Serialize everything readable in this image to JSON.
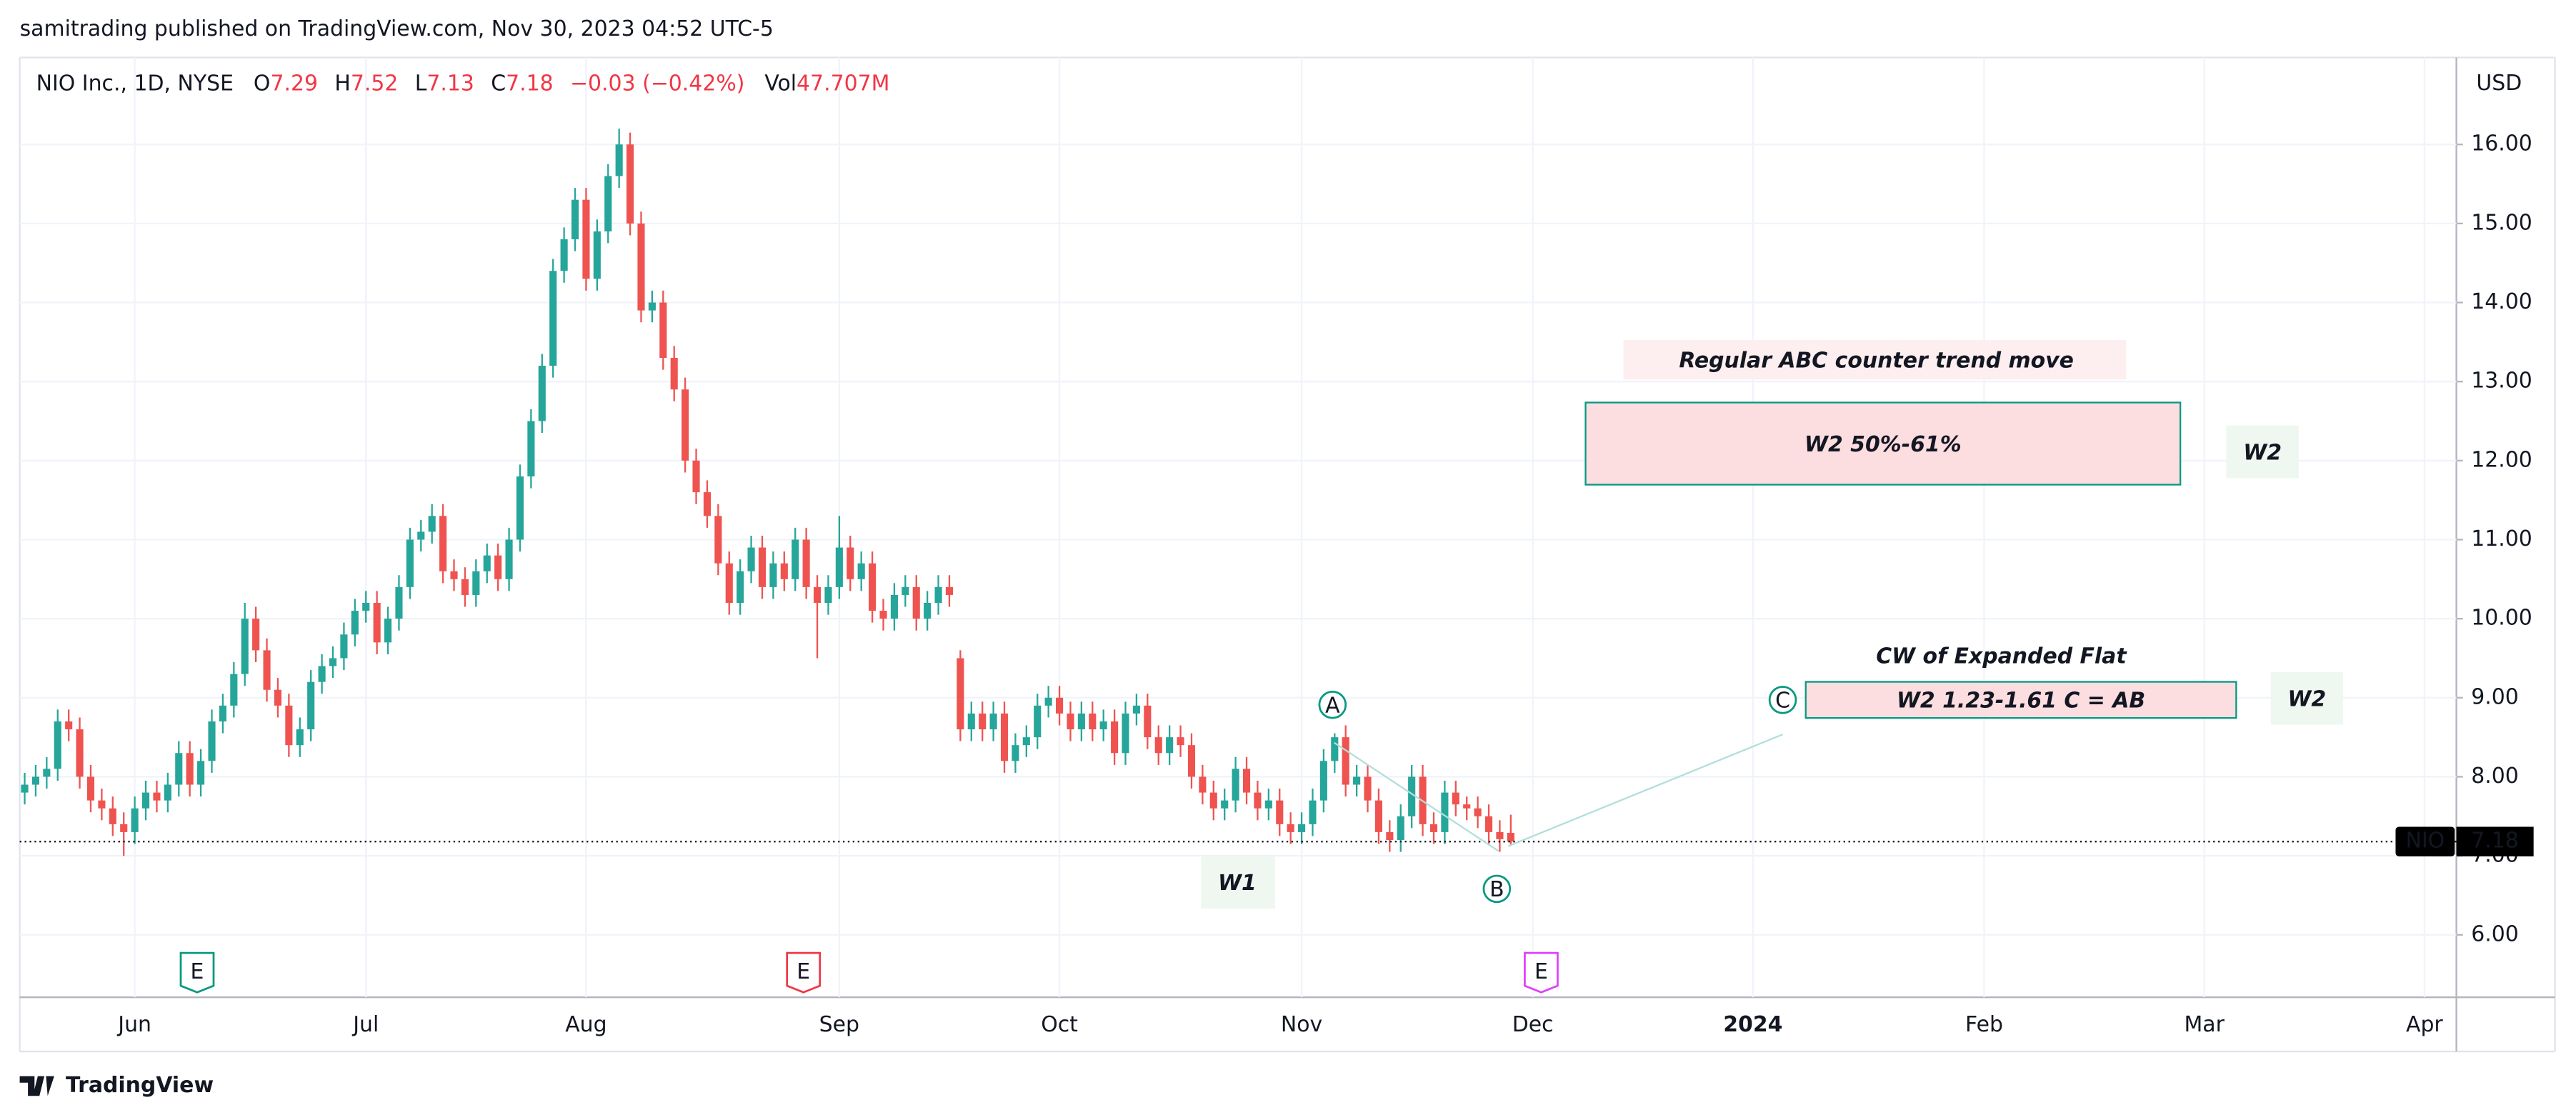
{
  "header": {
    "publisher": "samitrading published on TradingView.com, Nov 30, 2023 04:52 UTC-5",
    "symbol": "NIO Inc., 1D, NYSE",
    "o": "O",
    "h": "H",
    "l": "L",
    "c": "C",
    "change": "−0.03 (−0.42%)",
    "vol_label": "Vol",
    "vol": "47.707M",
    "currency": "USD",
    "ticker": "NIO",
    "brand": "TradingView"
  },
  "chart_data": {
    "type": "candlestick",
    "up_color": "#26a69a",
    "down_color": "#ef5350",
    "grid": true,
    "open": [
      7.8,
      7.9,
      8.0,
      8.1,
      8.7,
      8.6,
      8.0,
      7.7,
      7.6,
      7.4,
      7.3,
      7.6,
      7.8,
      7.7,
      7.9,
      8.3,
      7.9,
      8.2,
      8.7,
      8.9,
      9.3,
      10.0,
      9.6,
      9.1,
      8.9,
      8.4,
      8.6,
      9.2,
      9.4,
      9.5,
      9.8,
      10.1,
      10.2,
      9.7,
      10.0,
      10.4,
      11.0,
      11.1,
      11.3,
      10.6,
      10.5,
      10.3,
      10.6,
      10.8,
      10.5,
      11.0,
      11.8,
      12.5,
      13.2,
      14.4,
      14.8,
      15.3,
      14.3,
      14.9,
      15.6,
      16.0,
      15.0,
      13.9,
      14.0,
      13.3,
      12.9,
      12.0,
      11.6,
      11.3,
      10.7,
      10.2,
      10.6,
      10.9,
      10.4,
      10.7,
      10.5,
      11.0,
      10.4,
      10.2,
      10.4,
      10.9,
      10.5,
      10.7,
      10.1,
      10.0,
      10.3,
      10.4,
      10.0,
      10.2,
      10.4,
      9.5,
      8.6,
      8.8,
      8.6,
      8.8,
      8.2,
      8.4,
      8.5,
      8.9,
      9.0,
      8.8,
      8.6,
      8.8,
      8.6,
      8.7,
      8.3,
      8.8,
      8.9,
      8.5,
      8.3,
      8.5,
      8.4,
      8.0,
      7.8,
      7.6,
      7.7,
      8.1,
      7.8,
      7.6,
      7.7,
      7.4,
      7.3,
      7.4,
      7.7,
      8.2,
      8.5,
      7.9,
      8.0,
      7.7,
      7.3,
      7.2,
      7.5,
      8.0,
      7.4,
      7.3,
      7.8,
      7.65,
      7.6,
      7.5,
      7.3,
      7.29
    ],
    "high": [
      8.05,
      8.15,
      8.25,
      8.85,
      8.85,
      8.75,
      8.15,
      7.85,
      7.75,
      7.55,
      7.75,
      7.95,
      7.95,
      8.05,
      8.45,
      8.45,
      8.35,
      8.85,
      9.05,
      9.45,
      10.2,
      10.15,
      9.75,
      9.25,
      9.05,
      8.75,
      9.35,
      9.55,
      9.65,
      9.95,
      10.25,
      10.35,
      10.35,
      10.15,
      10.55,
      11.15,
      11.25,
      11.45,
      11.45,
      10.75,
      10.65,
      10.75,
      10.95,
      10.95,
      11.15,
      11.95,
      12.65,
      13.35,
      14.55,
      14.95,
      15.45,
      15.45,
      15.05,
      15.75,
      16.2,
      16.15,
      15.15,
      14.15,
      14.15,
      13.45,
      13.05,
      12.15,
      11.75,
      11.45,
      10.85,
      10.75,
      11.05,
      11.05,
      10.85,
      10.85,
      11.15,
      11.15,
      10.55,
      10.55,
      11.3,
      11.05,
      10.85,
      10.85,
      10.25,
      10.45,
      10.55,
      10.55,
      10.35,
      10.55,
      10.55,
      9.6,
      8.95,
      8.95,
      8.95,
      8.95,
      8.55,
      8.65,
      9.05,
      9.15,
      9.15,
      8.95,
      8.95,
      8.95,
      8.85,
      8.85,
      8.95,
      9.05,
      9.05,
      8.65,
      8.65,
      8.65,
      8.55,
      8.15,
      7.95,
      7.85,
      8.25,
      8.25,
      7.95,
      7.85,
      7.85,
      7.55,
      7.55,
      7.85,
      8.35,
      8.55,
      8.65,
      8.15,
      8.15,
      7.85,
      7.45,
      7.65,
      8.15,
      8.15,
      7.55,
      7.95,
      7.95,
      7.75,
      7.75,
      7.65,
      7.45,
      7.52
    ],
    "low": [
      7.65,
      7.75,
      7.85,
      7.95,
      8.45,
      7.85,
      7.55,
      7.45,
      7.25,
      7.0,
      7.15,
      7.45,
      7.55,
      7.55,
      7.75,
      7.75,
      7.75,
      8.05,
      8.55,
      8.75,
      9.15,
      9.45,
      8.95,
      8.75,
      8.25,
      8.25,
      8.45,
      9.05,
      9.25,
      9.35,
      9.65,
      9.95,
      9.55,
      9.55,
      9.85,
      10.25,
      10.85,
      10.95,
      10.45,
      10.35,
      10.15,
      10.15,
      10.45,
      10.35,
      10.35,
      10.85,
      11.65,
      12.35,
      13.05,
      14.25,
      14.65,
      14.15,
      14.15,
      14.75,
      15.45,
      14.85,
      13.75,
      13.75,
      13.15,
      12.75,
      11.85,
      11.45,
      11.15,
      10.55,
      10.05,
      10.05,
      10.45,
      10.25,
      10.25,
      10.35,
      10.35,
      10.25,
      9.5,
      10.05,
      10.25,
      10.35,
      10.35,
      9.95,
      9.85,
      9.85,
      10.15,
      9.85,
      9.85,
      10.05,
      10.15,
      8.45,
      8.45,
      8.45,
      8.45,
      8.05,
      8.05,
      8.25,
      8.35,
      8.75,
      8.65,
      8.45,
      8.45,
      8.45,
      8.45,
      8.15,
      8.15,
      8.65,
      8.35,
      8.15,
      8.15,
      8.25,
      7.85,
      7.65,
      7.45,
      7.45,
      7.55,
      7.65,
      7.45,
      7.45,
      7.25,
      7.15,
      7.15,
      7.25,
      7.55,
      8.05,
      7.75,
      7.75,
      7.55,
      7.15,
      7.05,
      7.05,
      7.35,
      7.25,
      7.15,
      7.15,
      7.5,
      7.45,
      7.35,
      7.15,
      7.05,
      7.13
    ],
    "close": [
      7.9,
      8.0,
      8.1,
      8.7,
      8.6,
      8.0,
      7.7,
      7.6,
      7.4,
      7.3,
      7.6,
      7.8,
      7.7,
      7.9,
      8.3,
      7.9,
      8.2,
      8.7,
      8.9,
      9.3,
      10.0,
      9.6,
      9.1,
      8.9,
      8.4,
      8.6,
      9.2,
      9.4,
      9.5,
      9.8,
      10.1,
      10.2,
      9.7,
      10.0,
      10.4,
      11.0,
      11.1,
      11.3,
      10.6,
      10.5,
      10.3,
      10.6,
      10.8,
      10.5,
      11.0,
      11.8,
      12.5,
      13.2,
      14.4,
      14.8,
      15.3,
      14.3,
      14.9,
      15.6,
      16.0,
      15.0,
      13.9,
      14.0,
      13.3,
      12.9,
      12.0,
      11.6,
      11.3,
      10.7,
      10.2,
      10.6,
      10.9,
      10.4,
      10.7,
      10.5,
      11.0,
      10.4,
      10.2,
      10.4,
      10.9,
      10.5,
      10.7,
      10.1,
      10.0,
      10.3,
      10.4,
      10.0,
      10.2,
      10.4,
      10.3,
      8.6,
      8.8,
      8.6,
      8.8,
      8.2,
      8.4,
      8.5,
      8.9,
      9.0,
      8.8,
      8.6,
      8.8,
      8.6,
      8.7,
      8.3,
      8.8,
      8.9,
      8.5,
      8.3,
      8.5,
      8.4,
      8.0,
      7.8,
      7.6,
      7.7,
      8.1,
      7.8,
      7.6,
      7.7,
      7.4,
      7.3,
      7.4,
      7.7,
      8.2,
      8.5,
      7.9,
      8.0,
      7.7,
      7.3,
      7.2,
      7.5,
      8.0,
      7.4,
      7.3,
      7.8,
      7.65,
      7.6,
      7.5,
      7.3,
      7.21,
      7.18
    ],
    "xlim": [
      -0.45,
      220.9
    ],
    "xticks": [
      {
        "value": 10,
        "label": "Jun"
      },
      {
        "value": 31,
        "label": "Jul"
      },
      {
        "value": 51,
        "label": "Aug"
      },
      {
        "value": 74,
        "label": "Sep"
      },
      {
        "value": 94,
        "label": "Oct"
      },
      {
        "value": 116,
        "label": "Nov"
      },
      {
        "value": 137,
        "label": "Dec"
      },
      {
        "value": 157,
        "label": "2024"
      },
      {
        "value": 178,
        "label": "Feb"
      },
      {
        "value": 198,
        "label": "Mar"
      },
      {
        "value": 218,
        "label": "Apr"
      }
    ],
    "ylim": [
      5.21,
      17.1
    ],
    "yticks": [
      {
        "value": 6,
        "label": "6.00"
      },
      {
        "value": 7,
        "label": "7.00"
      },
      {
        "value": 8,
        "label": "8.00"
      },
      {
        "value": 9,
        "label": "9.00"
      },
      {
        "value": 10,
        "label": "10.00"
      },
      {
        "value": 11,
        "label": "11.00"
      },
      {
        "value": 12,
        "label": "12.00"
      },
      {
        "value": 13,
        "label": "13.00"
      },
      {
        "value": 14,
        "label": "14.00"
      },
      {
        "value": 15,
        "label": "15.00"
      },
      {
        "value": 16,
        "label": "16.00"
      }
    ],
    "annotations": [
      "Regular ABC counter trend move",
      "W2 50%-61%",
      "W2",
      "CW of Expanded Flat",
      "W2 1.23-1.61 C = AB",
      "W2",
      "W1",
      "A",
      "B",
      "C",
      "E",
      "E",
      "E"
    ]
  }
}
